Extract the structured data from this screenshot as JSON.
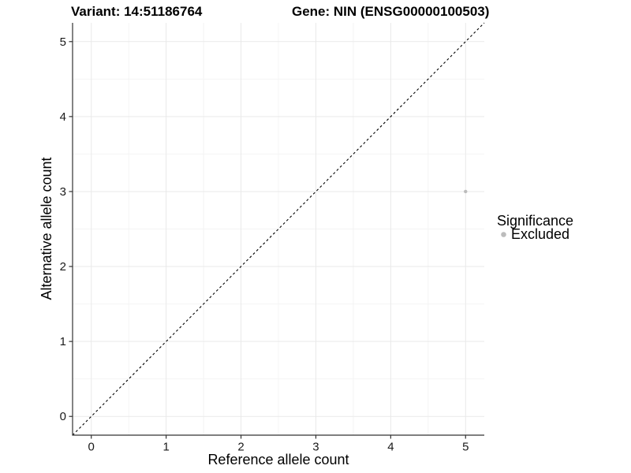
{
  "header": {
    "variant_label": "Variant: 14:51186764",
    "gene_label": "Gene: NIN (ENSG00000100503)"
  },
  "chart_data": {
    "type": "scatter",
    "xlabel": "Reference allele count",
    "ylabel": "Alternative allele count",
    "xlim": [
      -0.25,
      5.25
    ],
    "ylim": [
      -0.25,
      5.25
    ],
    "x_ticks": [
      0,
      1,
      2,
      3,
      4,
      5
    ],
    "y_ticks": [
      0,
      1,
      2,
      3,
      4,
      5
    ],
    "x_minor_ticks": [
      0.5,
      1.5,
      2.5,
      3.5,
      4.5
    ],
    "y_minor_ticks": [
      0.5,
      1.5,
      2.5,
      3.5,
      4.5
    ],
    "grid": "major and minor gridlines on white panel",
    "reference_line": {
      "equation": "y = x",
      "style": "dashed",
      "color": "#000000",
      "from": [
        -0.25,
        -0.25
      ],
      "to": [
        5.25,
        5.25
      ]
    },
    "series": [
      {
        "name": "Excluded",
        "color": "#bcbcbc",
        "marker": "circle",
        "points": [
          [
            5,
            3
          ]
        ]
      }
    ],
    "legend": {
      "title": "Significance",
      "position": "right",
      "items": [
        {
          "label": "Excluded",
          "color": "#bcbcbc",
          "marker": "circle"
        }
      ]
    }
  },
  "colors": {
    "background": "#ffffff",
    "grid_major": "#e9e9e9",
    "grid_minor": "#f4f4f4",
    "axis_line": "#333333",
    "tick_mark": "#333333",
    "tick_text": "#1a1a1a",
    "title_text": "#000000",
    "point": "#bcbcbc"
  }
}
